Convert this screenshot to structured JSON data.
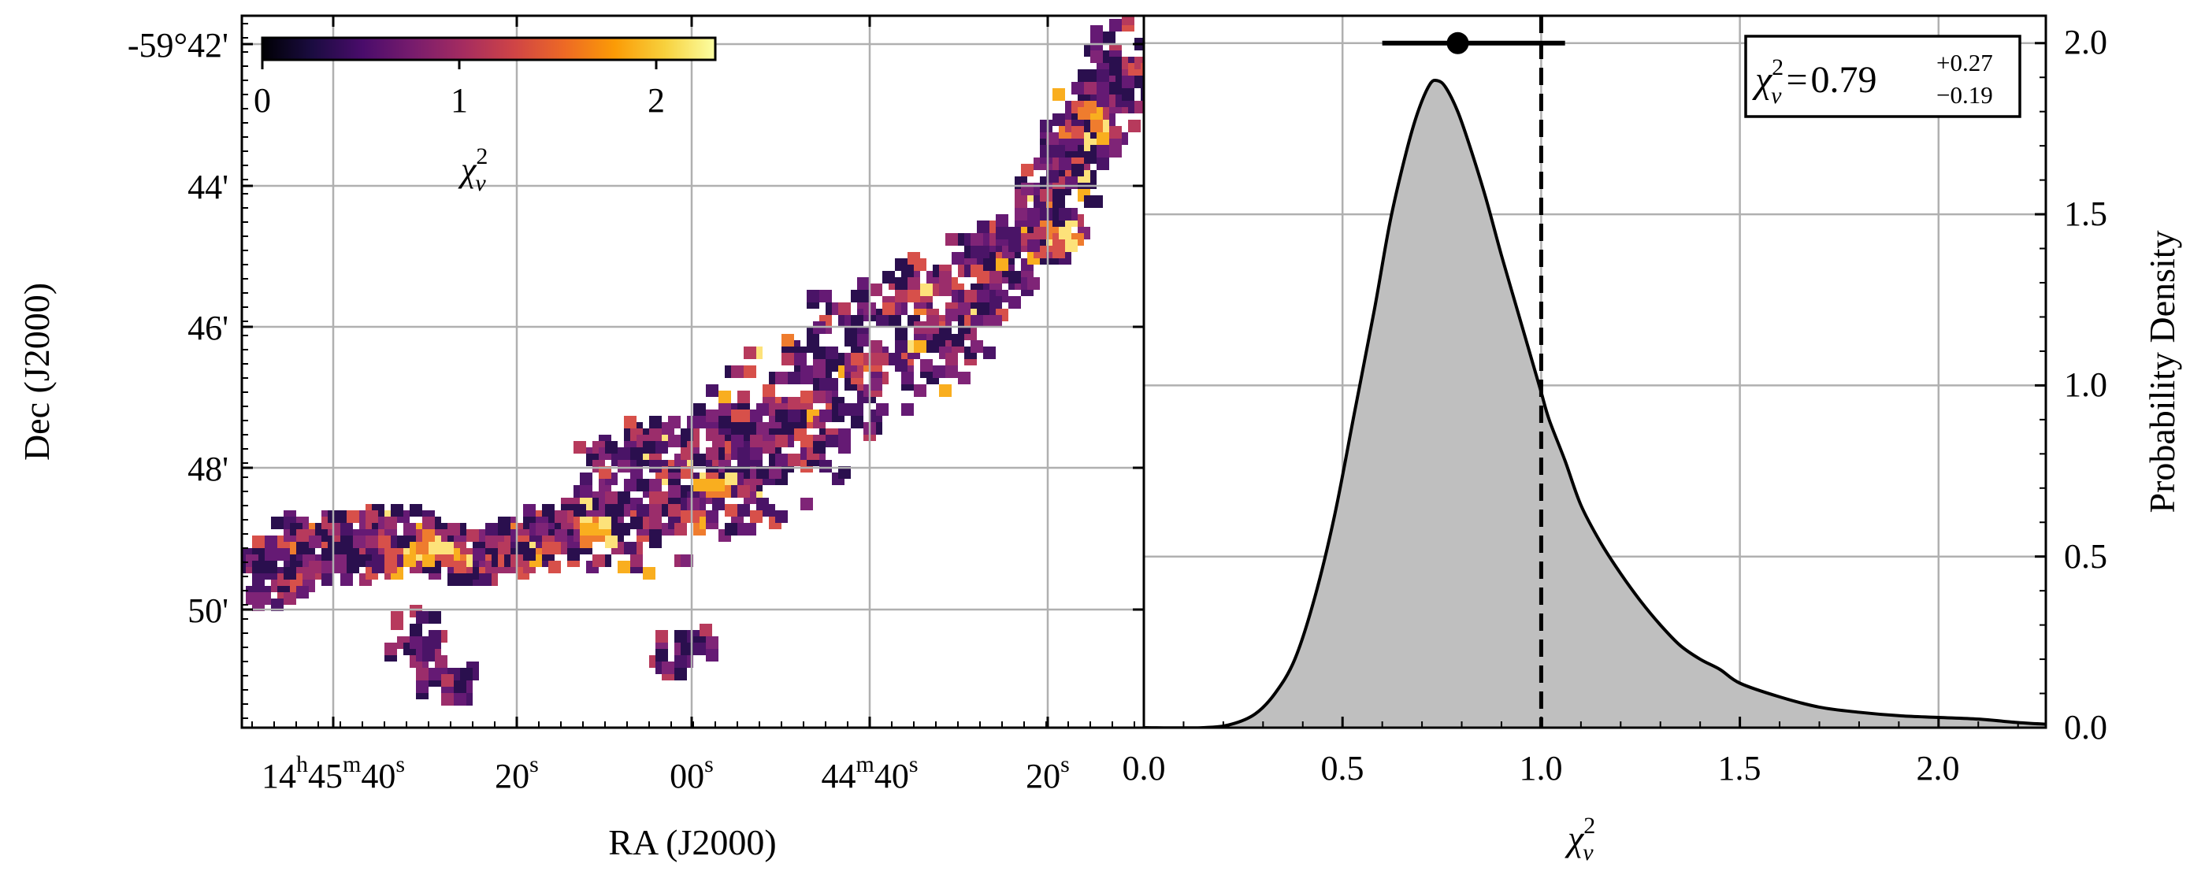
{
  "chart_data": [
    {
      "type": "heatmap",
      "xlabel": "RA (J2000)",
      "ylabel": "Dec (J2000)",
      "x_ticks": [
        {
          "h": "14",
          "m": "45",
          "s": "40"
        },
        {
          "s": "20"
        },
        {
          "s": "00"
        },
        {
          "m": "44",
          "s": "40"
        },
        {
          "s": "20"
        }
      ],
      "y_ticks": [
        "-59°42'",
        "44'",
        "46'",
        "48'",
        "50'"
      ],
      "colorbar": {
        "label": "χ",
        "label_sup": "2",
        "label_sub": "ν",
        "ticks": [
          0,
          1,
          2
        ],
        "tick_labels": [
          "0",
          "1",
          "2"
        ],
        "range": [
          0,
          2.3
        ],
        "colormap": "inferno",
        "stops": [
          "#000004",
          "#1b0c41",
          "#4a0c6b",
          "#781c6d",
          "#a52c60",
          "#cf4446",
          "#ed6925",
          "#fb9b06",
          "#f7d13d",
          "#fcffa4"
        ]
      },
      "grid": true,
      "filament_colors": [
        "#2a0f4e",
        "#4a1467",
        "#651a74",
        "#7f2477",
        "#9b2d6b",
        "#b73a5c",
        "#d7504a",
        "#ef7c2e",
        "#f9ae1f",
        "#fde27a"
      ]
    },
    {
      "type": "area",
      "xlabel": "χ",
      "xlabel_sup": "2",
      "xlabel_sub": "ν",
      "ylabel": "Probability Density",
      "xlim": [
        0,
        2.27
      ],
      "ylim": [
        0,
        2.08
      ],
      "x_ticks": [
        "0.0",
        "0.5",
        "1.0",
        "1.5",
        "2.0"
      ],
      "y_ticks": [
        "0.0",
        "0.5",
        "1.0",
        "1.5",
        "2.0"
      ],
      "x": [
        0.0,
        0.15,
        0.22,
        0.28,
        0.33,
        0.38,
        0.43,
        0.48,
        0.53,
        0.58,
        0.62,
        0.66,
        0.69,
        0.72,
        0.74,
        0.76,
        0.79,
        0.82,
        0.86,
        0.9,
        0.94,
        0.98,
        1.0,
        1.02,
        1.06,
        1.1,
        1.15,
        1.2,
        1.25,
        1.3,
        1.35,
        1.4,
        1.45,
        1.5,
        1.6,
        1.7,
        1.8,
        1.9,
        2.0,
        2.1,
        2.2,
        2.27
      ],
      "y": [
        0.0,
        0.0,
        0.01,
        0.04,
        0.1,
        0.2,
        0.38,
        0.62,
        0.92,
        1.22,
        1.48,
        1.68,
        1.8,
        1.88,
        1.89,
        1.87,
        1.8,
        1.7,
        1.55,
        1.38,
        1.22,
        1.06,
        0.98,
        0.9,
        0.78,
        0.65,
        0.54,
        0.45,
        0.37,
        0.3,
        0.24,
        0.2,
        0.17,
        0.13,
        0.09,
        0.06,
        0.045,
        0.035,
        0.03,
        0.025,
        0.015,
        0.01
      ],
      "fill_color": "#bfbfbf",
      "reference_line": {
        "x": 1.0,
        "style": "dashed"
      },
      "point": {
        "x": 0.79,
        "y": 2.0,
        "xerr_minus": 0.19,
        "xerr_plus": 0.27
      },
      "annotation": {
        "symbol": "χ",
        "sup": "2",
        "sub": "ν",
        "equals": "=",
        "value": "0.79",
        "plus": "+0.27",
        "minus": "−0.19"
      },
      "grid": true
    }
  ]
}
